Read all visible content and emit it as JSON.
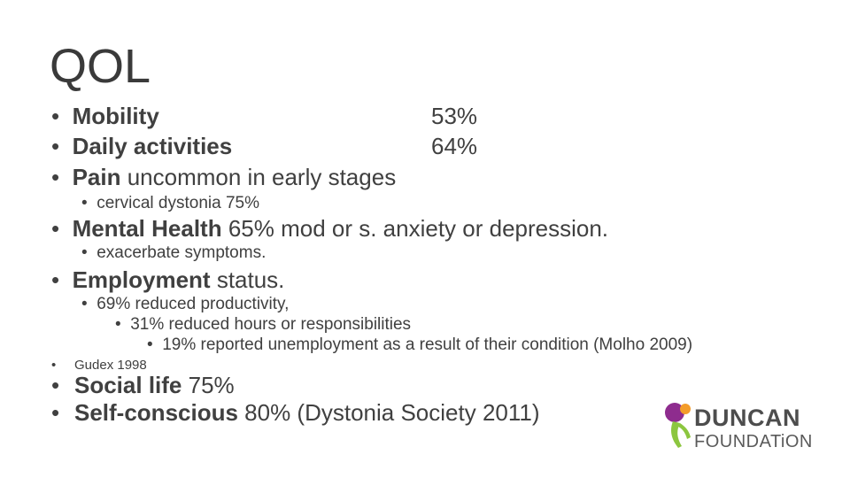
{
  "slide": {
    "title": "QOL",
    "items": [
      {
        "bullet": "•",
        "bold": "Mobility",
        "rest": "",
        "pct": "53%"
      },
      {
        "bullet": "•",
        "bold": "Daily activities",
        "rest": "",
        "pct": "64%"
      },
      {
        "bullet": "•",
        "bold": "Pain",
        "rest": " uncommon in early stages"
      },
      {
        "bullet": "•",
        "text": "cervical dystonia 75%"
      },
      {
        "bullet": "•",
        "bold": "Mental Health",
        "rest": " 65% mod or s. anxiety or depression."
      },
      {
        "bullet": "•",
        "text": "exacerbate symptoms."
      },
      {
        "bullet": "•",
        "bold": "Employment",
        "rest": " status."
      },
      {
        "bullet": "•",
        "text": "69% reduced productivity,"
      },
      {
        "bullet": "•",
        "text": "31% reduced hours or responsibilities"
      },
      {
        "bullet": "•",
        "text": "19% reported unemployment as a result of their condition (Molho 2009)"
      },
      {
        "bullet": "•",
        "text": "Gudex 1998"
      },
      {
        "bullet": "•",
        "bold": "Social life",
        "rest": " 75%"
      },
      {
        "bullet": "•",
        "bold": "Self-conscious",
        "rest": " 80% (Dystonia Society 2011)"
      }
    ]
  },
  "logo": {
    "line1": "DUNCAN",
    "line2": "FOUNDATiON",
    "colors": {
      "purple": "#8e2c8e",
      "orange": "#f39c2a",
      "green": "#8cc63f"
    }
  }
}
